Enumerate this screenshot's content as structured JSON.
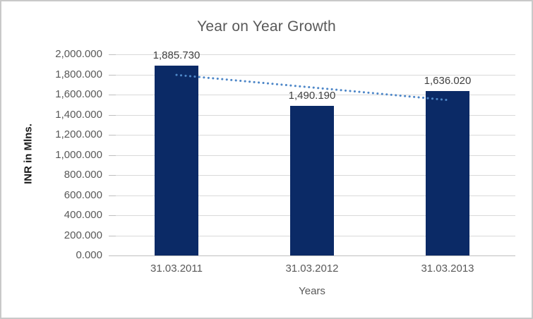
{
  "window": {
    "background_color": "#ffffff",
    "border_color": "#c9c9c9"
  },
  "chart_data": {
    "type": "bar",
    "title": "Year on Year Growth",
    "xlabel": "Years",
    "ylabel": "INR in Mlns.",
    "categories": [
      "31.03.2011",
      "31.03.2012",
      "31.03.2013"
    ],
    "series": [
      {
        "name": "INR in Mlns.",
        "values": [
          1885.73,
          1490.19,
          1636.02
        ]
      }
    ],
    "data_labels": [
      "1,885.730",
      "1,490.190",
      "1,636.020"
    ],
    "ylim": [
      0,
      2000
    ],
    "ytick_step": 200,
    "ytick_labels": [
      "0.000",
      "200.000",
      "400.000",
      "600.000",
      "800.000",
      "1,000.000",
      "1,200.000",
      "1,400.000",
      "1,600.000",
      "1,800.000",
      "2,000.000"
    ],
    "grid": true,
    "legend_position": "none",
    "colors": {
      "bar": "#0b2a66",
      "trendline": "#4e87c8",
      "gridline": "#d9d9d9",
      "axis_line": "#bfbfbf",
      "title_text": "#595959",
      "tick_text": "#595959",
      "data_label_text": "#404040",
      "y_axis_title_text": "#1a1a1a"
    },
    "trendline": {
      "type": "linear",
      "style": "dotted",
      "start_value": 1795.5,
      "end_value": 1545.8
    }
  }
}
